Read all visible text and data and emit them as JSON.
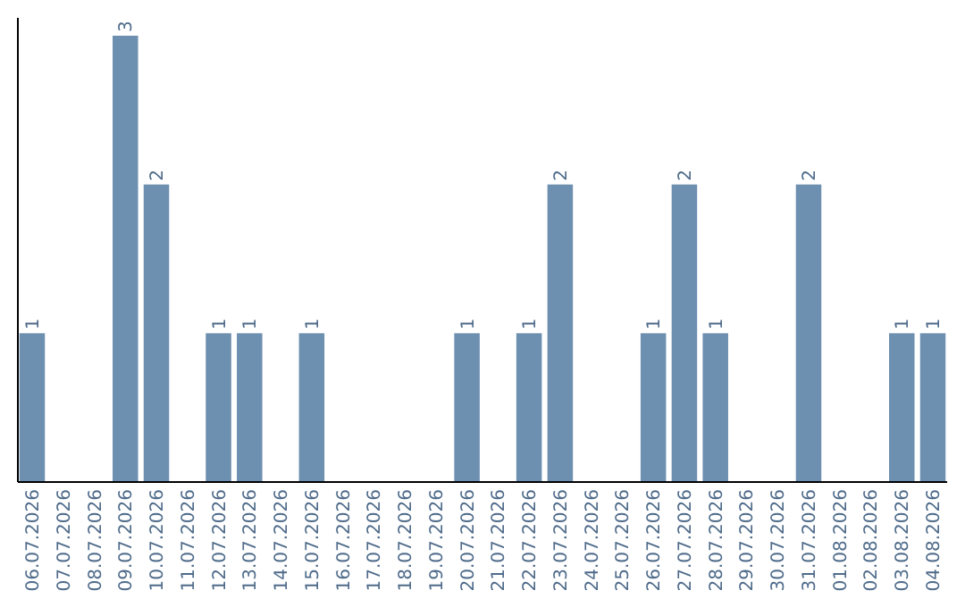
{
  "chart_data": {
    "type": "bar",
    "categories": [
      "06.07.2026",
      "07.07.2026",
      "08.07.2026",
      "09.07.2026",
      "10.07.2026",
      "11.07.2026",
      "12.07.2026",
      "13.07.2026",
      "14.07.2026",
      "15.07.2026",
      "16.07.2026",
      "17.07.2026",
      "18.07.2026",
      "19.07.2026",
      "20.07.2026",
      "21.07.2026",
      "22.07.2026",
      "23.07.2026",
      "24.07.2026",
      "25.07.2026",
      "26.07.2026",
      "27.07.2026",
      "28.07.2026",
      "29.07.2026",
      "30.07.2026",
      "31.07.2026",
      "01.08.2026",
      "02.08.2026",
      "03.08.2026",
      "04.08.2026"
    ],
    "values": [
      1,
      0,
      0,
      3,
      2,
      0,
      1,
      1,
      0,
      1,
      0,
      0,
      0,
      0,
      1,
      0,
      1,
      2,
      0,
      0,
      1,
      2,
      1,
      0,
      0,
      2,
      0,
      0,
      1,
      1
    ],
    "value_labels": [
      "1",
      null,
      null,
      "3",
      "2",
      null,
      "1",
      "1",
      null,
      "1",
      null,
      null,
      null,
      null,
      "1",
      null,
      "1",
      "2",
      null,
      null,
      "1",
      "2",
      "1",
      null,
      null,
      "2",
      null,
      null,
      "1",
      "1"
    ],
    "color": "#6d8fb0",
    "ylim": [
      0,
      3.12
    ],
    "tick_labels": "x"
  }
}
